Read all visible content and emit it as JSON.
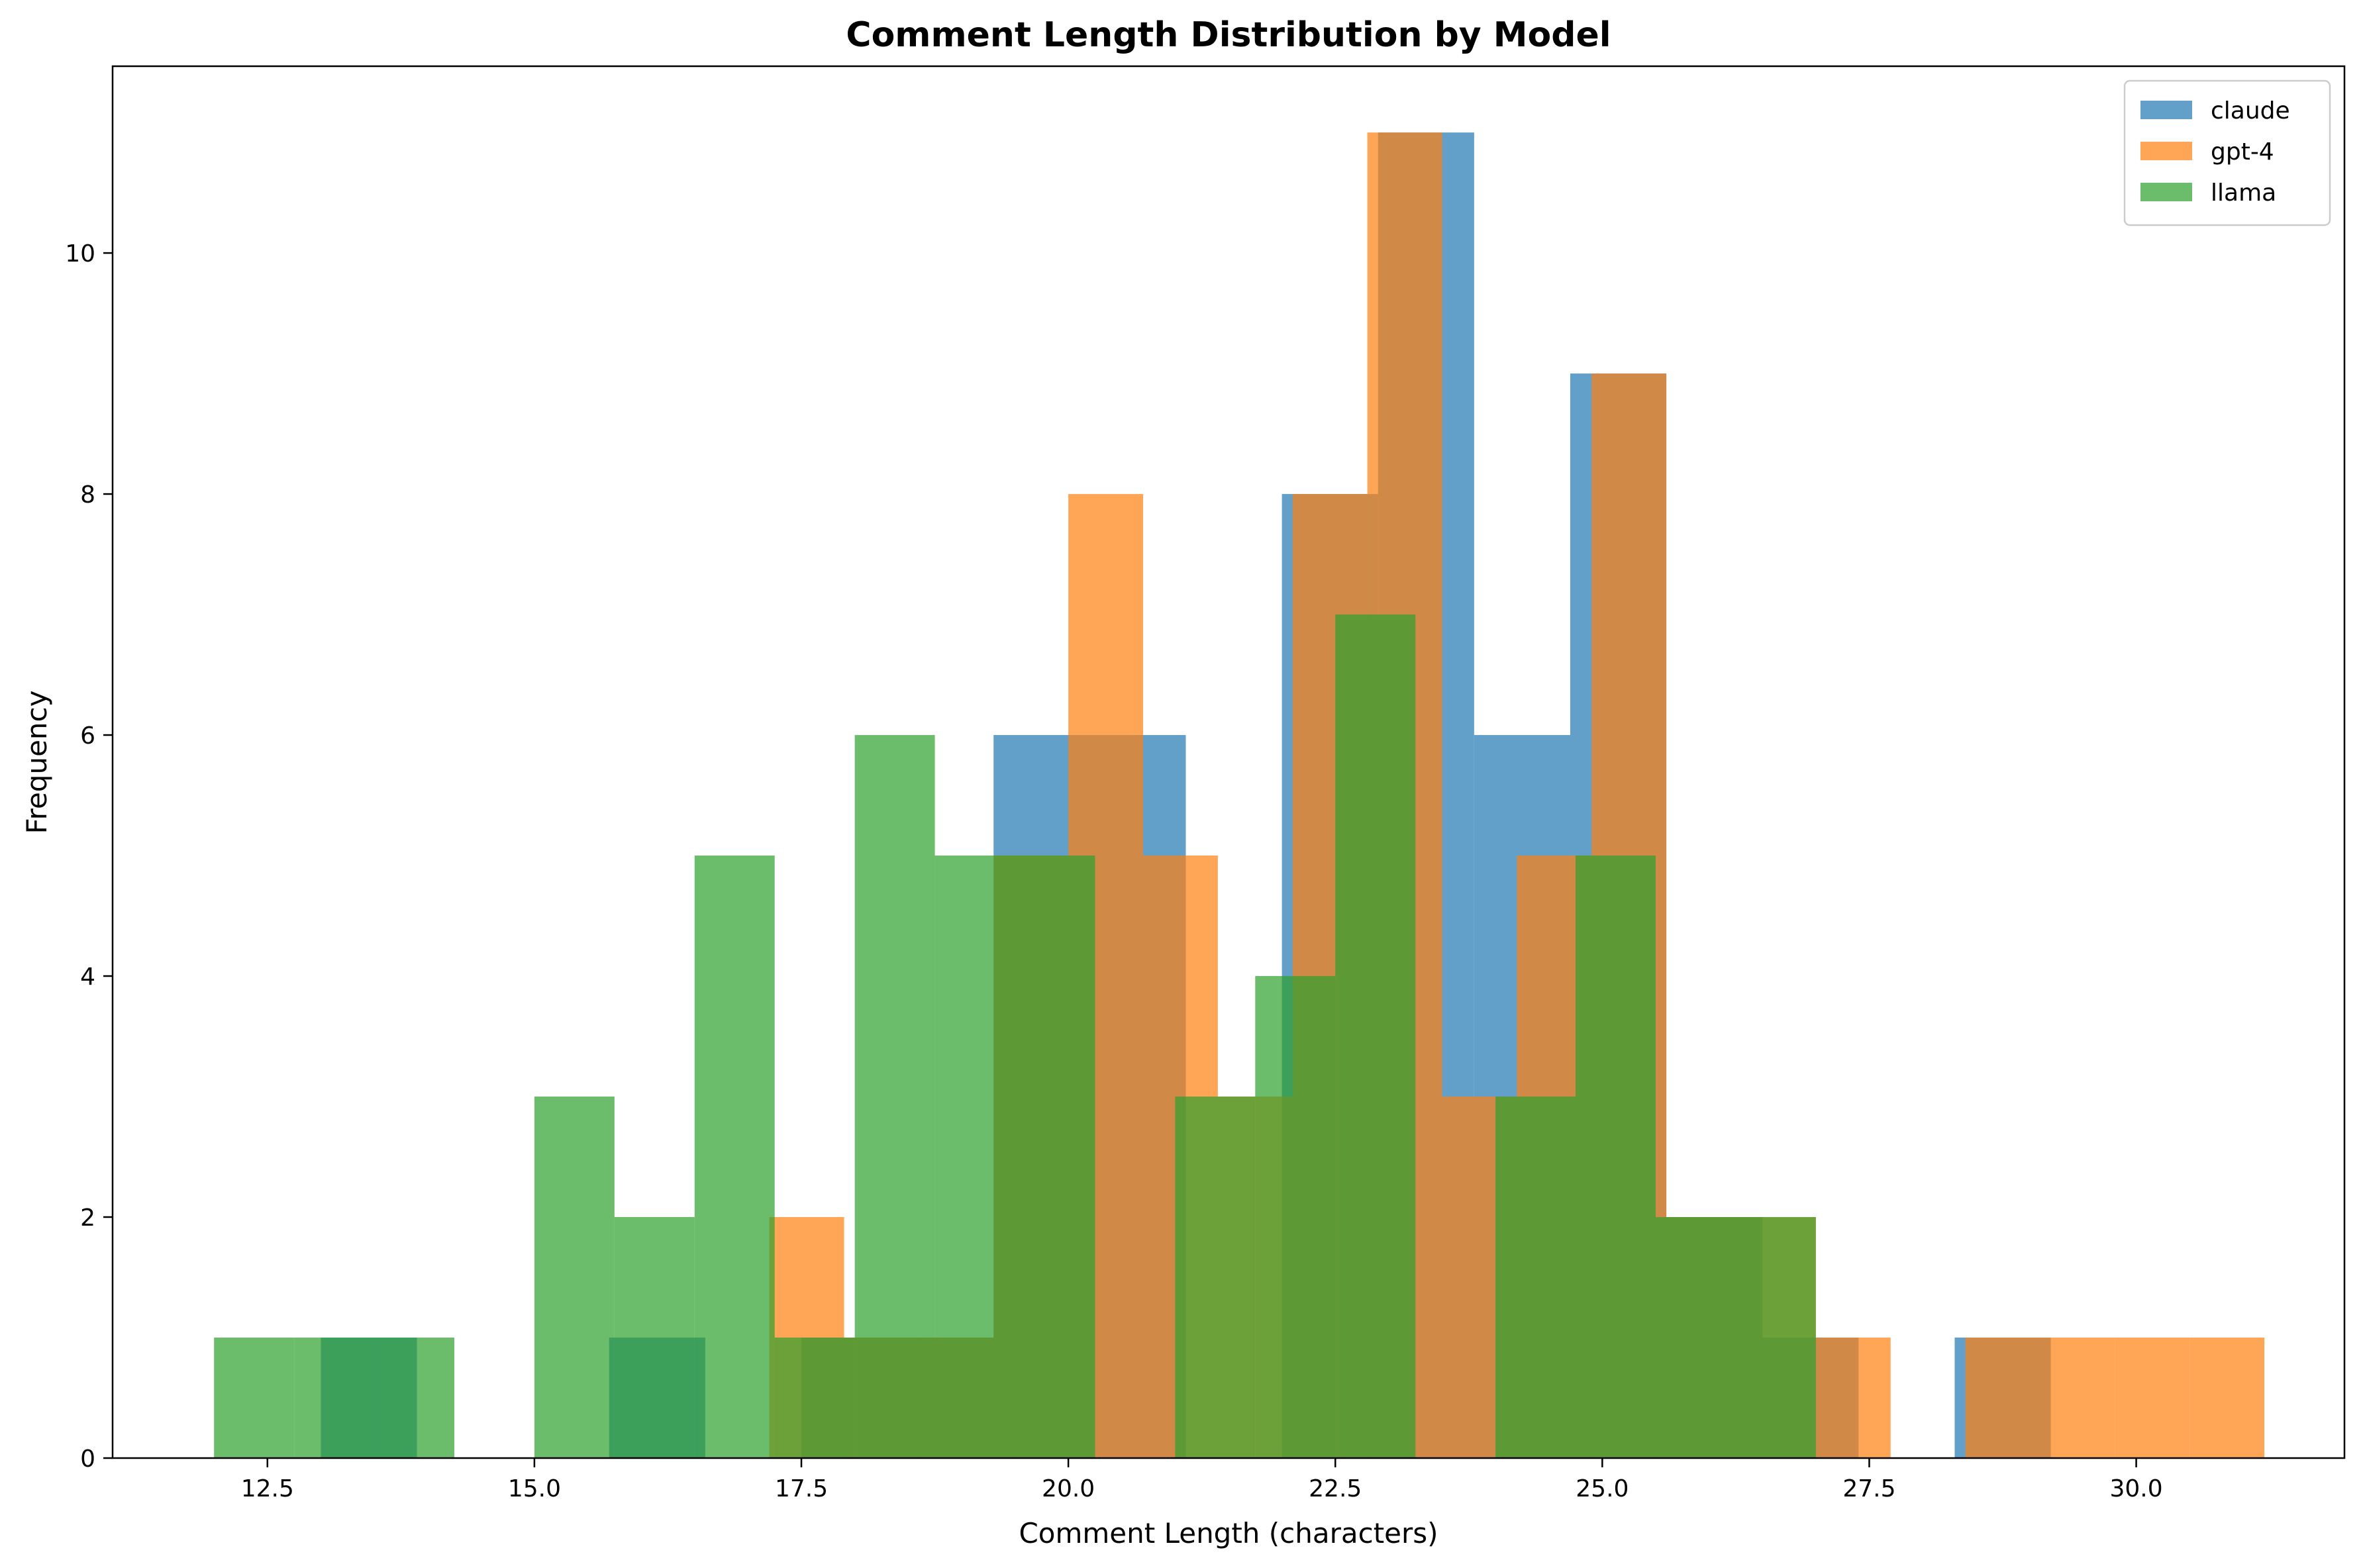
{
  "chart_data": {
    "type": "bar",
    "subtype": "histogram-overlay",
    "title": "Comment Length Distribution by Model",
    "xlabel": "Comment Length (characters)",
    "ylabel": "Frequency",
    "xlim": [
      11.05,
      31.95
    ],
    "ylim": [
      0,
      11.55
    ],
    "xticks": [
      12.5,
      15.0,
      17.5,
      20.0,
      22.5,
      25.0,
      27.5,
      30.0
    ],
    "xtick_labels": [
      "12.5",
      "15.0",
      "17.5",
      "20.0",
      "22.5",
      "25.0",
      "27.5",
      "30.0"
    ],
    "yticks": [
      0,
      2,
      4,
      6,
      8,
      10
    ],
    "ytick_labels": [
      "0",
      "2",
      "4",
      "6",
      "8",
      "10"
    ],
    "grid": false,
    "legend_position": "top-right",
    "series": [
      {
        "name": "claude",
        "color": "#1f77b4",
        "opacity": 0.7,
        "bin_edges": [
          13.0,
          13.9,
          14.8,
          15.7,
          16.6,
          17.5,
          18.4,
          19.3,
          20.2,
          21.1,
          22.0,
          22.9,
          23.8,
          24.7,
          25.6,
          26.5,
          27.4,
          28.3,
          29.2
        ],
        "counts": [
          1,
          0,
          0,
          1,
          0,
          1,
          1,
          6,
          6,
          0,
          8,
          11,
          6,
          9,
          2,
          1,
          0,
          1
        ]
      },
      {
        "name": "gpt-4",
        "color": "#ff7f0e",
        "opacity": 0.7,
        "bin_edges": [
          17.2,
          17.9,
          18.6,
          19.3,
          20.0,
          20.7,
          21.4,
          22.1,
          22.8,
          23.5,
          24.2,
          24.9,
          25.6,
          26.3,
          27.0,
          27.7,
          28.4,
          29.1,
          29.8,
          30.5,
          31.2
        ],
        "counts": [
          2,
          1,
          1,
          5,
          8,
          5,
          3,
          8,
          11,
          3,
          5,
          9,
          2,
          2,
          1,
          0,
          1,
          1,
          1,
          1
        ]
      },
      {
        "name": "llama",
        "color": "#2ca02c",
        "opacity": 0.7,
        "bin_edges": [
          12.0,
          12.75,
          13.5,
          14.25,
          15.0,
          15.75,
          16.5,
          17.25,
          18.0,
          18.75,
          19.5,
          20.25,
          21.0,
          21.75,
          22.5,
          23.25,
          24.0,
          24.75,
          25.5,
          26.25,
          27.0
        ],
        "counts": [
          1,
          1,
          1,
          0,
          3,
          2,
          5,
          1,
          6,
          5,
          5,
          0,
          3,
          4,
          7,
          0,
          3,
          5,
          2,
          2
        ]
      }
    ]
  }
}
